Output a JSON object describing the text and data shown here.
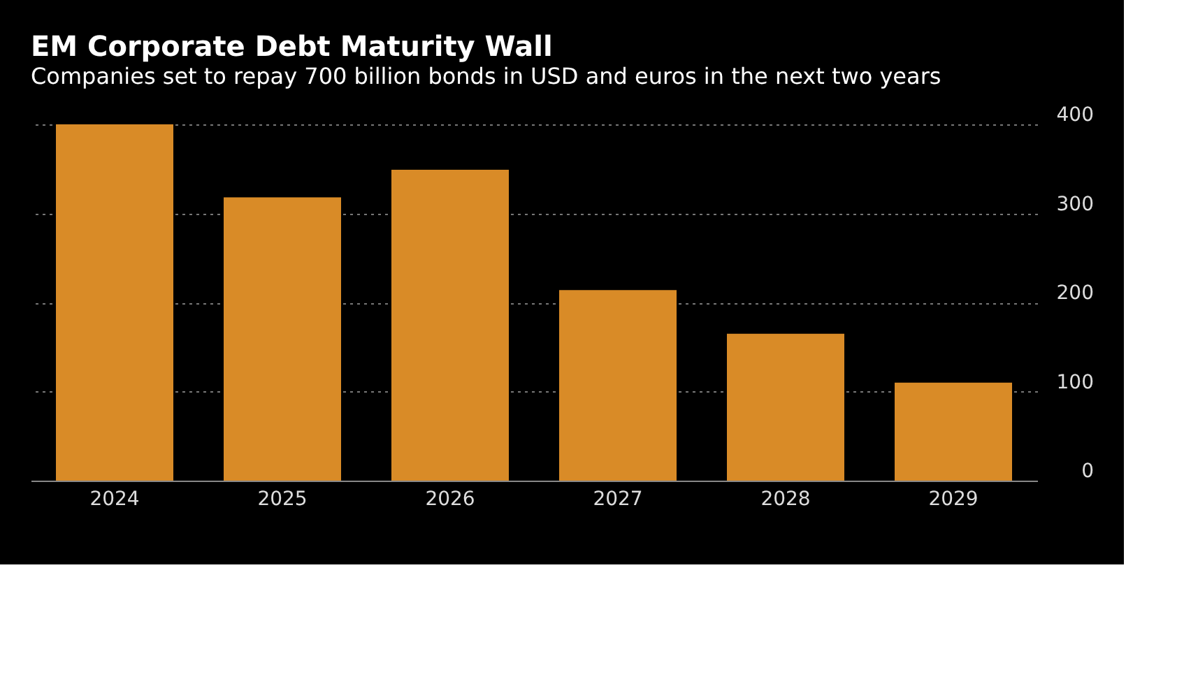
{
  "chart_data": {
    "type": "bar",
    "title": "EM Corporate Debt Maturity Wall",
    "subtitle": "Companies set to repay 700 billion bonds in USD and euros in the next two years",
    "categories": [
      "2024",
      "2025",
      "2026",
      "2027",
      "2028",
      "2029"
    ],
    "series": [
      {
        "color": "#d98b27",
        "values": [
          400,
          318,
          349,
          214,
          165,
          110
        ]
      }
    ],
    "ylim": [
      0,
      400
    ],
    "yticks": [
      0,
      100,
      200,
      300,
      400
    ],
    "grid": "y"
  }
}
